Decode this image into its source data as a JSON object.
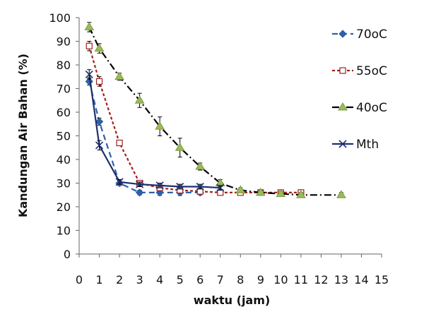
{
  "chart_data": {
    "type": "line",
    "title": "",
    "xlabel": "waktu (jam)",
    "ylabel": "Kandungan Air Bahan (%)",
    "xlim": [
      0,
      15
    ],
    "ylim": [
      0,
      100
    ],
    "xticks": [
      0,
      1,
      2,
      3,
      4,
      5,
      6,
      7,
      8,
      9,
      10,
      11,
      12,
      13,
      14,
      15
    ],
    "yticks": [
      0,
      10,
      20,
      30,
      40,
      50,
      60,
      70,
      80,
      90,
      100
    ],
    "grid": false,
    "legend_position": "right",
    "series": [
      {
        "name": "70oC",
        "color": "#2f5fa8",
        "dash": "dash",
        "marker": "diamond",
        "x": [
          0.5,
          1,
          2,
          3,
          4,
          5,
          6
        ],
        "y": [
          73,
          56,
          30,
          26,
          26,
          26,
          26
        ],
        "err": [
          1.5,
          1.5,
          1,
          1,
          1.2,
          1.2,
          1
        ]
      },
      {
        "name": "55oC",
        "color": "#a01f1a",
        "dash": "dot",
        "marker": "square",
        "x": [
          0.5,
          1,
          2,
          3,
          4,
          5,
          6,
          7,
          8,
          9,
          10,
          11
        ],
        "y": [
          88,
          73,
          47,
          30,
          28,
          27,
          26.5,
          26,
          26,
          26,
          26,
          26
        ],
        "err": [
          2,
          2,
          1,
          1,
          1,
          1,
          1,
          1,
          1,
          1,
          1,
          1
        ]
      },
      {
        "name": "40oC",
        "color": "#000000",
        "dash": "dashdot",
        "marker": "triangle",
        "x": [
          0.5,
          1,
          2,
          3,
          4,
          5,
          6,
          7,
          8,
          9,
          10,
          11,
          13
        ],
        "y": [
          96,
          87,
          75,
          65,
          54,
          45,
          37,
          30,
          27,
          26,
          25.5,
          25,
          25
        ],
        "err": [
          2,
          2,
          1.5,
          3,
          4,
          4,
          1.5,
          1.5,
          1,
          1,
          1,
          1,
          1
        ]
      },
      {
        "name": "Mth",
        "color": "#1f2f6e",
        "dash": "solid",
        "marker": "x",
        "x": [
          0.5,
          1,
          2,
          3,
          4,
          5,
          6,
          7
        ],
        "y": [
          76,
          46,
          30.5,
          29.5,
          29,
          28.5,
          28.5,
          28
        ],
        "err": [
          2,
          2,
          1,
          1,
          1,
          1,
          1,
          1
        ]
      }
    ]
  }
}
